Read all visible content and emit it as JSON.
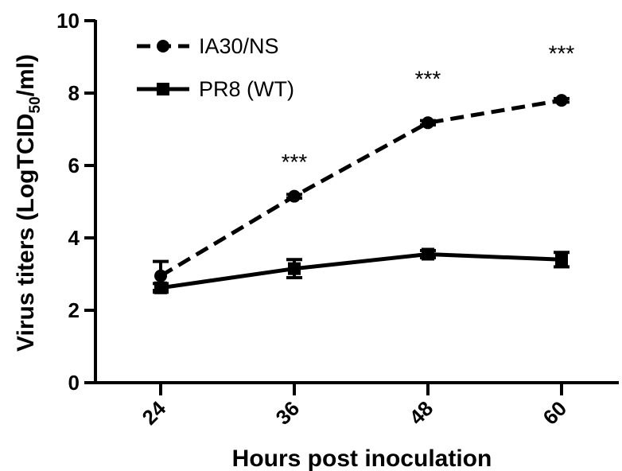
{
  "chart_data": {
    "type": "line",
    "xlabel": "Hours post inoculation",
    "ylabel_main": "Virus titers (LogTCID",
    "ylabel_sub": "50",
    "ylabel_end": "/ml)",
    "categories": [
      "24",
      "36",
      "48",
      "60"
    ],
    "x": [
      24,
      36,
      48,
      60
    ],
    "ylim": [
      0,
      10
    ],
    "yticks": [
      "0",
      "2",
      "4",
      "6",
      "8",
      "10"
    ],
    "grid": false,
    "legend_position": "top-left",
    "series": [
      {
        "name": "IA30/NS",
        "values": [
          2.95,
          5.15,
          7.18,
          7.8
        ],
        "errors": [
          0.4,
          0.05,
          0.06,
          0.05
        ],
        "marker": "circle",
        "line_style": "dashed",
        "color": "#000000"
      },
      {
        "name": "PR8 (WT)",
        "values": [
          2.62,
          3.15,
          3.55,
          3.4
        ],
        "errors": [
          0.12,
          0.25,
          0.1,
          0.2
        ],
        "marker": "square",
        "line_style": "solid",
        "color": "#000000"
      }
    ],
    "annotations": [
      {
        "x": 36,
        "y": 6.2,
        "text": "***"
      },
      {
        "x": 48,
        "y": 8.5,
        "text": "***"
      },
      {
        "x": 60,
        "y": 9.2,
        "text": "***"
      }
    ]
  }
}
